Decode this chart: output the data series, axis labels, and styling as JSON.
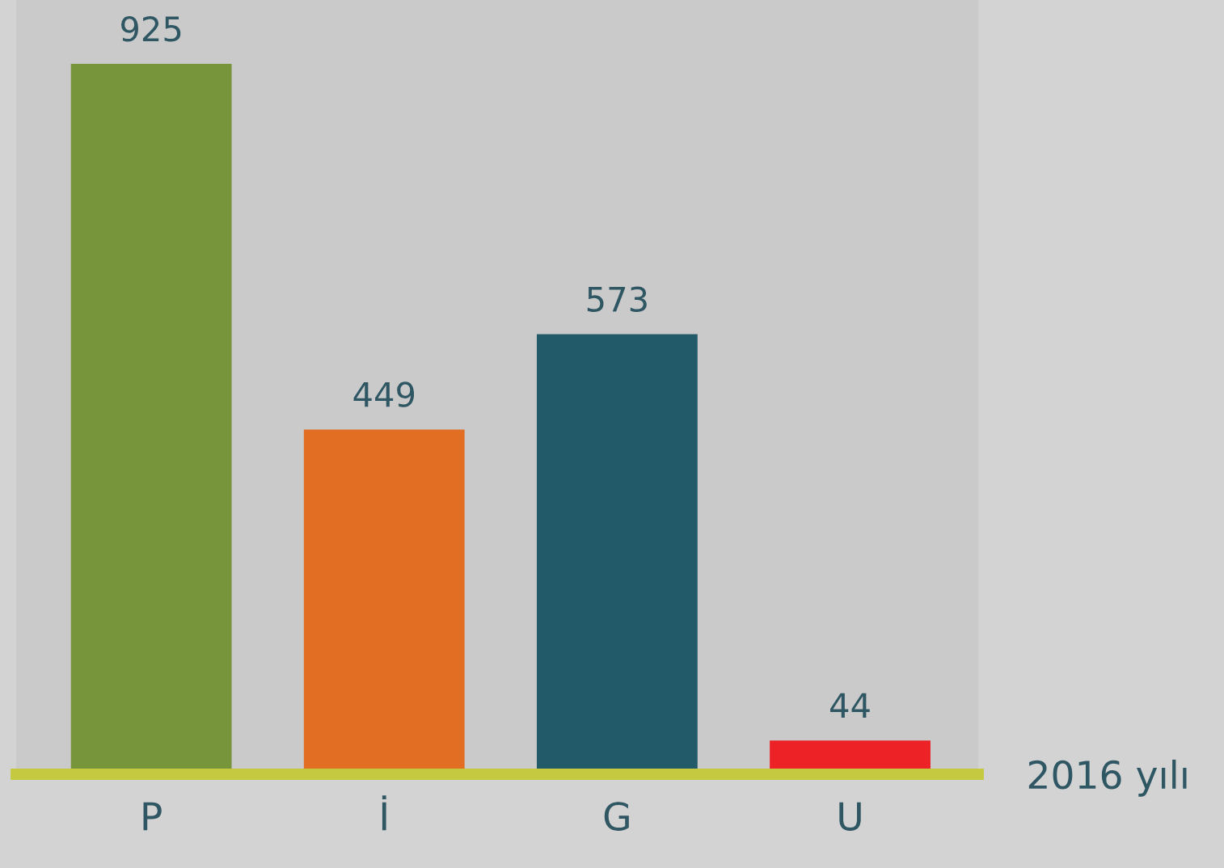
{
  "chart_data": {
    "type": "bar",
    "xlabel": "2016 yılı",
    "categories": [
      "P",
      "İ",
      "G",
      "U"
    ],
    "values": [
      925,
      449,
      573,
      44
    ],
    "colors": [
      "#77953a",
      "#e26e24",
      "#225a6a",
      "#ec2227"
    ],
    "data_labels": true,
    "tick_labels": "x"
  }
}
